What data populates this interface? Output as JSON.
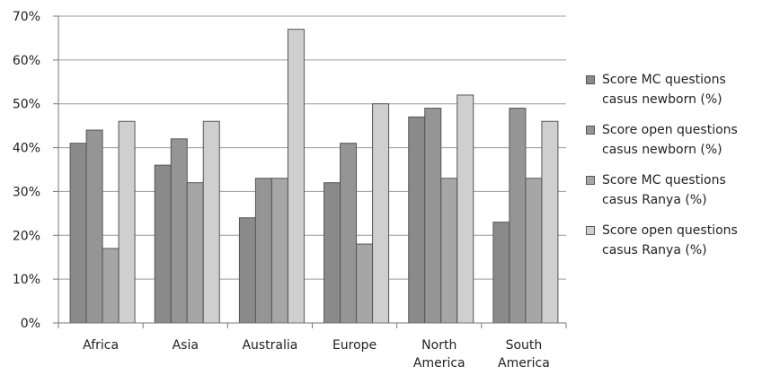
{
  "chart_data": {
    "type": "bar",
    "categories": [
      [
        "Africa"
      ],
      [
        "Asia"
      ],
      [
        "Australia"
      ],
      [
        "Europe"
      ],
      [
        "North",
        "America"
      ],
      [
        "South",
        "America"
      ]
    ],
    "series": [
      {
        "name": "Score MC questions\ncasus newborn (%)",
        "color": "#8a8a8a",
        "values": [
          41,
          36,
          24,
          32,
          47,
          23
        ]
      },
      {
        "name": "Score open questions\ncasus newborn (%)",
        "color": "#959595",
        "values": [
          44,
          42,
          33,
          41,
          49,
          49
        ]
      },
      {
        "name": "Score MC questions\ncasus Ranya (%)",
        "color": "#a6a6a6",
        "values": [
          17,
          32,
          33,
          18,
          33,
          33
        ]
      },
      {
        "name": "Score open questions\ncasus Ranya (%)",
        "color": "#cfcfcf",
        "values": [
          46,
          46,
          67,
          50,
          52,
          46
        ]
      }
    ],
    "ylim": [
      0,
      70
    ],
    "yticks": [
      0,
      10,
      20,
      30,
      40,
      50,
      60,
      70
    ],
    "ytick_suffix": "%",
    "grid": true,
    "legend_position": "right"
  }
}
